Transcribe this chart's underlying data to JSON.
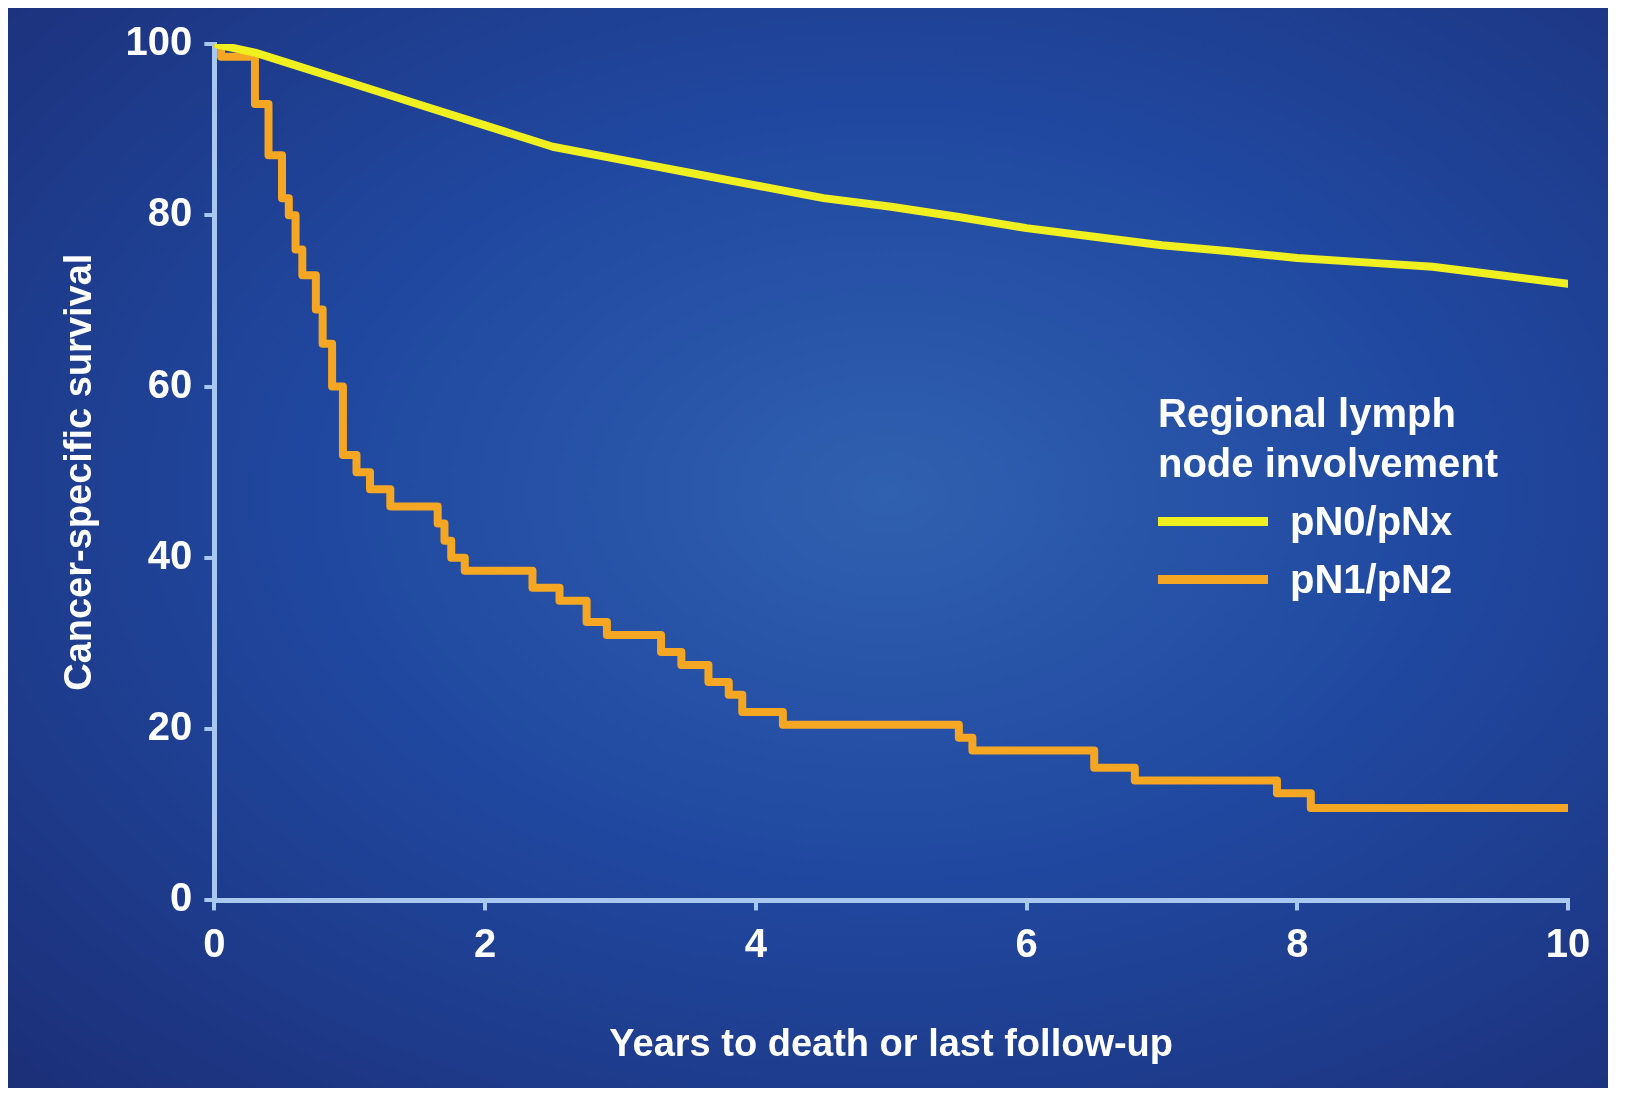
{
  "chart_data": {
    "type": "step",
    "xlabel": "Years to death or last follow-up",
    "ylabel": "Cancer-specific survival",
    "legend_title": "Regional lymph node involvement",
    "legend": "right",
    "xlim": [
      0,
      10
    ],
    "xticks": [
      0,
      2,
      4,
      6,
      8,
      10
    ],
    "ylim": [
      0,
      100
    ],
    "yticks": [
      0,
      20,
      40,
      60,
      80,
      100
    ],
    "series": [
      {
        "name": "pN0/pNx",
        "type": "line",
        "color": "#f0f020",
        "x": [
          0,
          0.3,
          0.6,
          1,
          1.5,
          2,
          2.5,
          3,
          3.5,
          4,
          4.5,
          5,
          5.5,
          6,
          6.5,
          7,
          7.5,
          8,
          8.5,
          9,
          9.5,
          10
        ],
        "values": [
          100,
          99,
          97.5,
          95.5,
          93,
          90.5,
          88,
          86.5,
          85,
          83.5,
          82,
          81,
          79.8,
          78.5,
          77.5,
          76.5,
          75.8,
          75,
          74.5,
          74,
          73,
          72
        ]
      },
      {
        "name": "pN1/pN2",
        "type": "step",
        "color": "#f5a623",
        "x": [
          0,
          0.05,
          0.3,
          0.4,
          0.5,
          0.55,
          0.6,
          0.65,
          0.75,
          0.8,
          0.87,
          0.95,
          1.05,
          1.15,
          1.3,
          1.65,
          1.7,
          1.75,
          1.85,
          2.35,
          2.55,
          2.75,
          2.9,
          3.3,
          3.45,
          3.65,
          3.8,
          3.9,
          4.2,
          5.5,
          5.6,
          6.5,
          6.8,
          7.85,
          8.1,
          10
        ],
        "values": [
          100,
          98.5,
          93,
          87,
          82,
          80,
          76,
          73,
          69,
          65,
          60,
          52,
          50,
          48,
          46,
          44,
          42,
          40,
          38.5,
          36.5,
          35,
          32.5,
          31,
          29,
          27.5,
          25.5,
          24,
          22,
          20.5,
          19,
          17.5,
          15.5,
          14,
          12.5,
          10.8,
          10.8
        ]
      }
    ]
  }
}
